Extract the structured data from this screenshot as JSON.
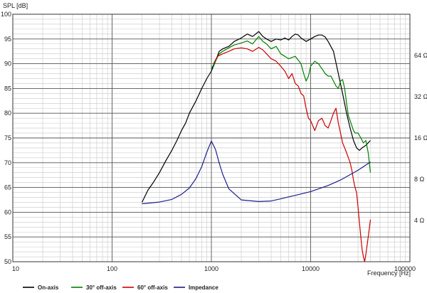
{
  "chart_data": {
    "type": "line",
    "ylabel": "SPL [dB]",
    "xlabel": "Frequency [Hz]",
    "x_scale": "log",
    "xlim": [
      10,
      100000
    ],
    "ylim": [
      50,
      100
    ],
    "y2lim": [
      2,
      128
    ],
    "y2_scale": "log",
    "grid": true,
    "legend_position": "bottom",
    "x_ticks": [
      {
        "value": 10,
        "label": "10"
      },
      {
        "value": 100,
        "label": "100"
      },
      {
        "value": 1000,
        "label": "1000"
      },
      {
        "value": 10000,
        "label": "10000"
      },
      {
        "value": 100000,
        "label": "100000"
      }
    ],
    "y_ticks": [
      {
        "value": 50,
        "label": "50"
      },
      {
        "value": 55,
        "label": "55"
      },
      {
        "value": 60,
        "label": "60"
      },
      {
        "value": 65,
        "label": "65"
      },
      {
        "value": 70,
        "label": "70"
      },
      {
        "value": 75,
        "label": "75"
      },
      {
        "value": 80,
        "label": "80"
      },
      {
        "value": 85,
        "label": "85"
      },
      {
        "value": 90,
        "label": "90"
      },
      {
        "value": 95,
        "label": "95"
      },
      {
        "value": 100,
        "label": "100"
      }
    ],
    "y2_ticks": [
      {
        "value": 4,
        "label": "4 Ω"
      },
      {
        "value": 8,
        "label": "8 Ω"
      },
      {
        "value": 16,
        "label": "16 Ω"
      },
      {
        "value": 32,
        "label": "32 Ω"
      },
      {
        "value": 64,
        "label": "64 Ω"
      }
    ],
    "series": [
      {
        "name": "On-axis",
        "color": "#000000",
        "axis": "left",
        "points": [
          [
            200,
            62
          ],
          [
            230,
            64.5
          ],
          [
            260,
            66
          ],
          [
            300,
            68
          ],
          [
            350,
            70.5
          ],
          [
            400,
            72.5
          ],
          [
            450,
            74.5
          ],
          [
            500,
            76.5
          ],
          [
            550,
            78
          ],
          [
            600,
            80
          ],
          [
            700,
            82.5
          ],
          [
            800,
            85
          ],
          [
            900,
            87
          ],
          [
            1000,
            88.5
          ],
          [
            1100,
            90.5
          ],
          [
            1200,
            92.5
          ],
          [
            1300,
            93
          ],
          [
            1500,
            93.5
          ],
          [
            1700,
            94.5
          ],
          [
            2000,
            95.2
          ],
          [
            2300,
            96
          ],
          [
            2600,
            95.5
          ],
          [
            3000,
            96.5
          ],
          [
            3300,
            95.5
          ],
          [
            3600,
            95
          ],
          [
            4000,
            94.5
          ],
          [
            4500,
            95
          ],
          [
            5000,
            94.8
          ],
          [
            5500,
            95.2
          ],
          [
            6000,
            94.8
          ],
          [
            6500,
            95.5
          ],
          [
            7000,
            96
          ],
          [
            7500,
            95.8
          ],
          [
            8000,
            95.2
          ],
          [
            9000,
            94.5
          ],
          [
            10000,
            95
          ],
          [
            11000,
            95.5
          ],
          [
            12000,
            95.8
          ],
          [
            13000,
            95.8
          ],
          [
            14000,
            95.4
          ],
          [
            15000,
            94.5
          ],
          [
            17000,
            92.5
          ],
          [
            19000,
            88
          ],
          [
            21000,
            84
          ],
          [
            23000,
            80
          ],
          [
            25000,
            77
          ],
          [
            27000,
            74.5
          ],
          [
            29000,
            73
          ],
          [
            31000,
            72.5
          ],
          [
            33000,
            73
          ],
          [
            36000,
            73.5
          ],
          [
            40000,
            74.5
          ]
        ]
      },
      {
        "name": "30° off-axis",
        "color": "#008000",
        "axis": "left",
        "points": [
          [
            1000,
            89
          ],
          [
            1100,
            90.5
          ],
          [
            1200,
            92
          ],
          [
            1300,
            92.5
          ],
          [
            1500,
            93.2
          ],
          [
            1700,
            93.8
          ],
          [
            2000,
            94.2
          ],
          [
            2300,
            94.6
          ],
          [
            2600,
            94
          ],
          [
            3000,
            95.5
          ],
          [
            3300,
            94.5
          ],
          [
            3600,
            94
          ],
          [
            4000,
            93
          ],
          [
            4500,
            93.5
          ],
          [
            5000,
            92
          ],
          [
            5500,
            91.5
          ],
          [
            6000,
            91
          ],
          [
            7000,
            91.5
          ],
          [
            8000,
            90
          ],
          [
            8500,
            88
          ],
          [
            9000,
            86.5
          ],
          [
            9500,
            87.5
          ],
          [
            10000,
            89.5
          ],
          [
            11000,
            90.5
          ],
          [
            12000,
            90
          ],
          [
            13000,
            89
          ],
          [
            14000,
            88
          ],
          [
            15000,
            87.5
          ],
          [
            16000,
            87.5
          ],
          [
            17000,
            86.5
          ],
          [
            18000,
            85.5
          ],
          [
            19000,
            85
          ],
          [
            20000,
            86.5
          ],
          [
            21000,
            86.8
          ],
          [
            22000,
            85
          ],
          [
            23000,
            82
          ],
          [
            24000,
            79.5
          ],
          [
            25000,
            78.5
          ],
          [
            26000,
            77.5
          ],
          [
            27000,
            76.5
          ],
          [
            28000,
            76
          ],
          [
            30000,
            76
          ],
          [
            32000,
            75
          ],
          [
            34000,
            74
          ],
          [
            36000,
            74.5
          ],
          [
            38000,
            72
          ],
          [
            40000,
            68
          ]
        ]
      },
      {
        "name": "60° off-axis",
        "color": "#cc0000",
        "axis": "left",
        "points": [
          [
            1050,
            90
          ],
          [
            1150,
            91.5
          ],
          [
            1300,
            92
          ],
          [
            1500,
            92.5
          ],
          [
            1700,
            93
          ],
          [
            2000,
            93.2
          ],
          [
            2300,
            93
          ],
          [
            2600,
            92.5
          ],
          [
            3000,
            93.3
          ],
          [
            3300,
            92.8
          ],
          [
            3600,
            92
          ],
          [
            4000,
            91
          ],
          [
            4500,
            90.5
          ],
          [
            5000,
            89.5
          ],
          [
            5500,
            88.5
          ],
          [
            6000,
            87
          ],
          [
            6500,
            88
          ],
          [
            7000,
            86
          ],
          [
            7500,
            85.5
          ],
          [
            8000,
            84
          ],
          [
            8500,
            83.5
          ],
          [
            9000,
            81
          ],
          [
            9500,
            79
          ],
          [
            10000,
            78.5
          ],
          [
            11000,
            76.5
          ],
          [
            12000,
            78.5
          ],
          [
            13000,
            79
          ],
          [
            14000,
            77.5
          ],
          [
            15000,
            77
          ],
          [
            16000,
            78.5
          ],
          [
            17000,
            80
          ],
          [
            18000,
            81
          ],
          [
            19000,
            78
          ],
          [
            20000,
            76
          ],
          [
            21000,
            74
          ],
          [
            22000,
            73
          ],
          [
            23000,
            72
          ],
          [
            24000,
            71
          ],
          [
            25000,
            70
          ],
          [
            26000,
            68.5
          ],
          [
            27000,
            66.5
          ],
          [
            28000,
            65
          ],
          [
            29000,
            64
          ],
          [
            30000,
            61
          ],
          [
            31000,
            58
          ],
          [
            32000,
            55
          ],
          [
            33000,
            52.5
          ],
          [
            34000,
            51
          ],
          [
            35000,
            50
          ],
          [
            36000,
            51.5
          ],
          [
            38000,
            55
          ],
          [
            40000,
            58.5
          ]
        ]
      },
      {
        "name": "Impedance",
        "color": "#1e1e8c",
        "axis": "right",
        "points": [
          [
            200,
            5.3
          ],
          [
            300,
            5.45
          ],
          [
            400,
            5.7
          ],
          [
            500,
            6.2
          ],
          [
            600,
            6.9
          ],
          [
            700,
            8.1
          ],
          [
            800,
            9.9
          ],
          [
            900,
            12.6
          ],
          [
            1000,
            15.2
          ],
          [
            1100,
            13.2
          ],
          [
            1200,
            10.5
          ],
          [
            1300,
            8.7
          ],
          [
            1500,
            6.8
          ],
          [
            2000,
            5.65
          ],
          [
            3000,
            5.5
          ],
          [
            4000,
            5.55
          ],
          [
            5000,
            5.75
          ],
          [
            6000,
            5.95
          ],
          [
            7000,
            6.1
          ],
          [
            8000,
            6.25
          ],
          [
            10000,
            6.5
          ],
          [
            15000,
            7.2
          ],
          [
            20000,
            7.9
          ],
          [
            30000,
            9.3
          ],
          [
            40000,
            10.7
          ]
        ]
      }
    ]
  }
}
